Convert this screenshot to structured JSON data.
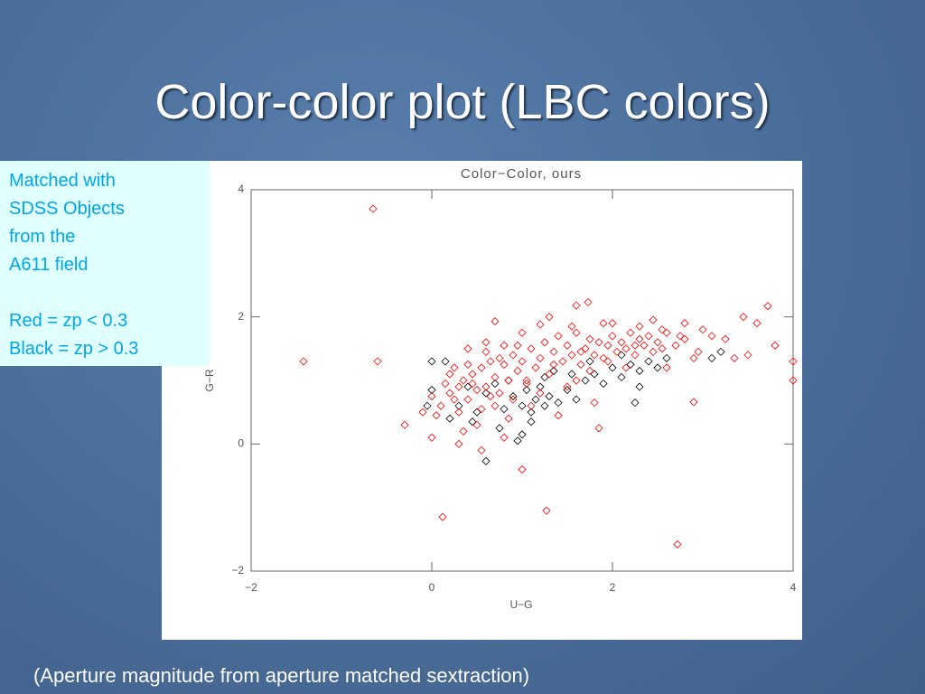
{
  "slide": {
    "title": "Color-color plot (LBC colors)",
    "note_lines": [
      "Matched with",
      "SDSS Objects",
      "from the",
      "A611 field",
      "Red = zp < 0.3",
      "Black = zp > 0.3"
    ],
    "footnote": "(Aperture magnitude from aperture matched sextraction)"
  },
  "chart_data": {
    "type": "scatter",
    "title": "Color−Color, ours",
    "x_label": "U−G",
    "y_label": "G−R",
    "xlim": [
      -2,
      4
    ],
    "ylim": [
      -2,
      4
    ],
    "xticks": [
      {
        "value": -2,
        "label": "−2"
      },
      0,
      2,
      4
    ],
    "yticks": [
      {
        "value": -2,
        "label": "−2"
      },
      0,
      2,
      4
    ],
    "series": [
      {
        "color": "#000000",
        "x": [
          0.6,
          0.0,
          0.15,
          -0.05,
          0.0,
          0.3,
          0.4,
          0.5,
          0.6,
          0.7,
          0.8,
          0.9,
          1.0,
          1.05,
          1.1,
          1.15,
          1.2,
          1.25,
          1.3,
          1.4,
          1.5,
          1.6,
          1.7,
          1.8,
          1.9,
          2.0,
          2.1,
          2.2,
          2.3,
          2.4,
          2.5,
          2.6,
          3.1,
          3.2,
          2.25,
          2.3,
          0.75,
          0.95,
          1.0,
          0.2,
          1.35,
          1.55,
          1.75,
          2.1,
          0.85,
          1.25,
          0.45,
          1.1
        ],
        "y": [
          -0.27,
          1.3,
          1.3,
          0.6,
          0.85,
          0.6,
          0.9,
          0.5,
          0.8,
          0.95,
          0.55,
          0.75,
          0.6,
          0.85,
          0.5,
          0.7,
          0.9,
          0.6,
          0.75,
          0.65,
          0.85,
          0.7,
          1.0,
          1.1,
          0.95,
          1.2,
          1.05,
          1.25,
          1.15,
          1.3,
          1.2,
          1.35,
          1.35,
          1.45,
          0.65,
          0.9,
          0.25,
          0.05,
          0.15,
          0.4,
          1.15,
          1.1,
          1.3,
          1.4,
          1.0,
          1.05,
          0.35,
          0.35
        ]
      },
      {
        "color": "#ff0000",
        "x": [
          -0.65,
          -1.42,
          -0.6,
          0.12,
          1.27,
          2.72,
          1.0,
          3.72,
          3.45,
          3.6,
          3.8,
          4.0,
          4.0,
          3.5,
          3.25,
          2.9,
          1.73,
          1.6,
          0.7,
          1.2,
          2.8,
          -0.3,
          0.0,
          0.1,
          0.2,
          0.3,
          0.35,
          0.4,
          0.45,
          0.5,
          0.55,
          0.6,
          0.65,
          0.7,
          0.75,
          0.8,
          0.85,
          0.9,
          0.95,
          1.0,
          1.05,
          1.1,
          1.15,
          1.2,
          1.25,
          1.3,
          1.35,
          1.4,
          1.45,
          1.5,
          1.55,
          1.6,
          1.65,
          1.7,
          1.75,
          1.8,
          1.85,
          1.9,
          1.95,
          2.0,
          2.05,
          2.1,
          2.15,
          2.2,
          2.25,
          2.3,
          2.35,
          2.4,
          2.45,
          2.5,
          2.55,
          2.6,
          2.7,
          2.8,
          2.95,
          3.1,
          0.4,
          0.6,
          0.3,
          0.5,
          0.7,
          0.9,
          1.2,
          1.5,
          1.8,
          0.15,
          0.25,
          0.05,
          -0.1,
          0.0,
          0.35,
          1.4,
          1.6,
          2.0,
          2.3,
          1.3,
          1.0,
          0.8,
          0.6,
          0.4,
          0.2,
          1.1,
          0.85,
          0.55,
          2.6,
          2.9,
          3.0,
          2.45,
          1.9,
          1.55,
          0.95,
          0.75,
          0.45,
          0.25,
          0.65,
          1.05,
          1.35,
          1.65,
          1.95,
          2.25,
          2.55,
          2.75,
          3.35,
          0.3,
          0.55,
          0.8,
          1.85,
          2.15,
          1.75
        ],
        "y": [
          3.7,
          1.3,
          1.3,
          -1.15,
          -1.05,
          -1.58,
          -0.4,
          2.17,
          2.0,
          1.9,
          1.55,
          1.3,
          1.0,
          1.4,
          1.65,
          0.66,
          2.23,
          2.18,
          1.93,
          1.88,
          1.9,
          0.3,
          0.1,
          0.6,
          0.8,
          0.9,
          1.0,
          0.7,
          1.1,
          0.85,
          1.2,
          0.9,
          1.3,
          1.05,
          0.8,
          1.25,
          1.0,
          1.4,
          1.15,
          1.3,
          0.95,
          1.5,
          1.2,
          1.35,
          1.6,
          1.1,
          1.45,
          1.7,
          1.3,
          1.55,
          1.4,
          1.75,
          1.25,
          1.5,
          1.65,
          1.4,
          1.6,
          1.35,
          1.55,
          1.7,
          1.45,
          1.6,
          1.5,
          1.75,
          1.4,
          1.65,
          1.55,
          1.7,
          1.45,
          1.6,
          1.5,
          1.75,
          1.55,
          1.65,
          1.45,
          1.7,
          1.5,
          1.6,
          0.5,
          0.3,
          0.6,
          0.7,
          0.8,
          0.9,
          0.65,
          0.95,
          1.2,
          0.45,
          0.5,
          0.75,
          0.2,
          0.45,
          1.0,
          1.9,
          1.85,
          2.0,
          1.75,
          1.55,
          1.45,
          1.25,
          1.1,
          0.6,
          0.4,
          0.55,
          1.2,
          1.35,
          1.8,
          1.95,
          1.9,
          1.85,
          1.55,
          1.35,
          0.95,
          0.7,
          0.75,
          1.0,
          1.25,
          1.45,
          1.3,
          1.55,
          1.8,
          1.7,
          1.35,
          0.0,
          -0.1,
          0.1,
          0.25,
          1.2,
          1.15
        ]
      }
    ]
  }
}
